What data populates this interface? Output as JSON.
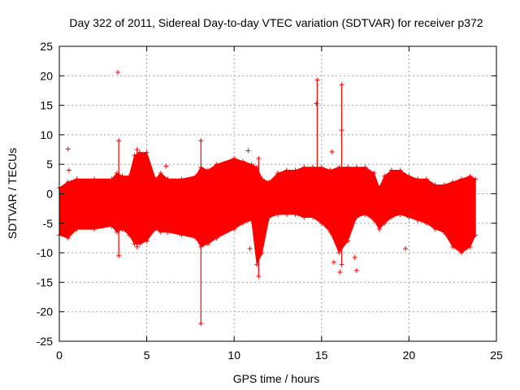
{
  "chart_data": {
    "type": "scatter",
    "title": "Day 322 of 2011, Sidereal Day-to-day VTEC variation (SDTVAR) for receiver p372",
    "xlabel": "GPS time / hours",
    "ylabel": "SDTVAR / TECUs",
    "xlim": [
      0,
      25
    ],
    "ylim": [
      -25,
      25
    ],
    "xticks": [
      0,
      5,
      10,
      15,
      20,
      25
    ],
    "yticks": [
      -25,
      -20,
      -15,
      -10,
      -5,
      0,
      5,
      10,
      15,
      20,
      25
    ],
    "grid": true,
    "marker": "+",
    "color": "#ff0000",
    "band": {
      "x": [
        0.0,
        0.5,
        1.0,
        2.0,
        3.0,
        3.3,
        3.6,
        4.0,
        4.3,
        4.6,
        5.0,
        5.5,
        5.8,
        6.2,
        7.0,
        7.8,
        8.1,
        8.5,
        9.0,
        10.0,
        10.5,
        11.0,
        11.3,
        11.6,
        12.0,
        12.5,
        13.0,
        13.5,
        14.0,
        14.5,
        15.0,
        15.5,
        16.0,
        16.5,
        17.0,
        17.5,
        18.0,
        18.3,
        18.6,
        19.0,
        19.5,
        20.0,
        20.5,
        21.0,
        21.5,
        22.0,
        22.5,
        23.0,
        23.5,
        23.8
      ],
      "upper": [
        1.0,
        2.0,
        2.5,
        2.5,
        2.5,
        3.5,
        3.0,
        3.0,
        6.5,
        7.0,
        7.0,
        2.5,
        3.5,
        2.5,
        2.5,
        3.0,
        4.5,
        4.0,
        5.0,
        6.0,
        5.5,
        5.0,
        4.5,
        2.5,
        2.0,
        3.5,
        4.0,
        4.0,
        4.5,
        4.5,
        4.5,
        4.0,
        4.5,
        4.5,
        4.5,
        4.5,
        3.5,
        1.0,
        3.0,
        4.0,
        4.0,
        3.0,
        2.5,
        2.5,
        1.5,
        1.5,
        2.0,
        2.5,
        3.0,
        2.5
      ],
      "lower": [
        -7.0,
        -7.5,
        -6.0,
        -6.0,
        -5.5,
        -6.5,
        -6.0,
        -7.0,
        -8.5,
        -8.5,
        -8.0,
        -6.0,
        -6.5,
        -6.5,
        -7.0,
        -7.5,
        -9.0,
        -8.5,
        -7.5,
        -6.0,
        -5.0,
        -4.5,
        -12.0,
        -10.0,
        -4.0,
        -3.5,
        -3.5,
        -3.5,
        -4.0,
        -4.0,
        -5.0,
        -6.5,
        -10.0,
        -8.0,
        -4.0,
        -3.5,
        -4.5,
        -6.0,
        -5.0,
        -4.0,
        -3.5,
        -4.0,
        -4.5,
        -5.0,
        -6.0,
        -6.5,
        -9.0,
        -10.0,
        -9.0,
        -7.0
      ]
    },
    "spikes": [
      {
        "x": 3.4,
        "y0": -10.5,
        "y1": 9.0
      },
      {
        "x": 8.1,
        "y0": -22.0,
        "y1": 9.0
      },
      {
        "x": 11.4,
        "y0": -14.0,
        "y1": 6.0
      },
      {
        "x": 14.75,
        "y0": 3.5,
        "y1": 19.3
      },
      {
        "x": 16.15,
        "y0": -12.0,
        "y1": 18.5
      },
      {
        "x": 4.45,
        "y0": -9.0,
        "y1": 7.5
      }
    ],
    "outliers": [
      {
        "x": 0.5,
        "y": 7.6
      },
      {
        "x": 0.55,
        "y": 4.0
      },
      {
        "x": 3.35,
        "y": 20.6
      },
      {
        "x": 6.1,
        "y": 4.7
      },
      {
        "x": 10.8,
        "y": 7.3
      },
      {
        "x": 10.9,
        "y": -9.3
      },
      {
        "x": 15.6,
        "y": 7.1
      },
      {
        "x": 15.7,
        "y": -11.6
      },
      {
        "x": 16.05,
        "y": -13.3
      },
      {
        "x": 16.15,
        "y": 10.8
      },
      {
        "x": 16.9,
        "y": -10.8
      },
      {
        "x": 17.0,
        "y": -13.0
      },
      {
        "x": 19.8,
        "y": -9.3
      },
      {
        "x": 14.7,
        "y": 15.3
      }
    ]
  }
}
